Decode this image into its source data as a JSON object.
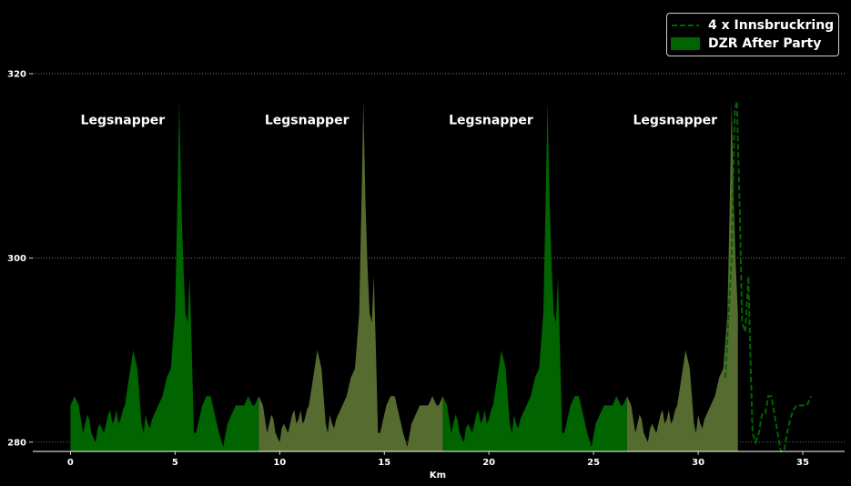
{
  "chart_data": {
    "type": "area",
    "xlabel": "Km",
    "ylabel": "",
    "xlim": [
      -1.8,
      37
    ],
    "ylim": [
      279,
      328
    ],
    "x_ticks": [
      0,
      5,
      10,
      15,
      20,
      25,
      30,
      35
    ],
    "y_ticks": [
      280,
      300,
      320
    ],
    "grid": "horizontal dotted",
    "legend_position": "top-right",
    "colors": {
      "background": "#000000",
      "dark_green": "#006400",
      "olive": "#556b2f",
      "line": "#006400",
      "grid": "#c8c8c8",
      "text": "#ffffff"
    },
    "series": [
      {
        "name": "4 x Innsbruckring",
        "style": "dashed line",
        "x": [
          31.3,
          31.6,
          31.75,
          31.85,
          32.0,
          32.1,
          32.25,
          32.4,
          32.5,
          32.6,
          32.75,
          32.9,
          33.05,
          33.2,
          33.35,
          33.5,
          33.65,
          33.8,
          33.95,
          34.1,
          34.25,
          34.4,
          34.55,
          34.7,
          34.85,
          35.0,
          35.2,
          35.4
        ],
        "values": [
          287,
          300,
          316,
          317,
          304,
          293,
          292,
          298,
          289,
          281,
          280,
          281,
          283,
          283,
          285,
          285,
          283,
          281,
          279,
          279,
          281,
          282.5,
          283.5,
          284,
          284,
          284,
          284,
          285
        ]
      },
      {
        "name": "DZR After Party",
        "style": "filled area",
        "segments": [
          {
            "x_start": 0.0,
            "x_end": 9.0,
            "fill": "dark_green"
          },
          {
            "x_start": 9.0,
            "x_end": 17.8,
            "fill": "olive"
          },
          {
            "x_start": 17.8,
            "x_end": 26.6,
            "fill": "dark_green"
          },
          {
            "x_start": 26.6,
            "x_end": 31.9,
            "fill": "olive"
          }
        ],
        "lap_length_km": 8.8,
        "lap_profile": {
          "x": [
            0.0,
            0.2,
            0.4,
            0.6,
            0.8,
            0.9,
            1.0,
            1.2,
            1.3,
            1.4,
            1.6,
            1.8,
            1.9,
            2.0,
            2.1,
            2.2,
            2.3,
            2.4,
            2.5,
            2.6,
            2.8,
            3.0,
            3.2,
            3.4,
            3.5,
            3.6,
            3.7,
            3.8,
            3.9,
            4.0,
            4.2,
            4.4,
            4.6,
            4.8,
            5.0,
            5.1,
            5.2,
            5.3,
            5.4,
            5.5,
            5.6,
            5.7,
            5.8,
            5.9,
            6.0,
            6.1,
            6.2,
            6.3,
            6.5,
            6.7,
            6.9,
            7.1,
            7.3,
            7.5,
            7.7,
            7.9,
            8.1,
            8.3,
            8.5,
            8.7,
            8.8
          ],
          "values": [
            284,
            285,
            284,
            281,
            283,
            282.5,
            281,
            280,
            281.5,
            282,
            281,
            283,
            283.5,
            282,
            282.5,
            283.5,
            282,
            282.5,
            283.5,
            284,
            287,
            290,
            288,
            282,
            281,
            283,
            282,
            281.5,
            282.5,
            283,
            284,
            285,
            287,
            288,
            294,
            305,
            317,
            306,
            299,
            294,
            293,
            298,
            290,
            281,
            281,
            282,
            283,
            284,
            285,
            285,
            283,
            281,
            279.5,
            282,
            283,
            284,
            284,
            284,
            285,
            284,
            284
          ]
        }
      }
    ],
    "annotations": [
      {
        "text": "Legsnapper",
        "x": 2.5,
        "y": 315
      },
      {
        "text": "Legsnapper",
        "x": 11.3,
        "y": 315
      },
      {
        "text": "Legsnapper",
        "x": 20.1,
        "y": 315
      },
      {
        "text": "Legsnapper",
        "x": 28.9,
        "y": 315
      }
    ]
  }
}
